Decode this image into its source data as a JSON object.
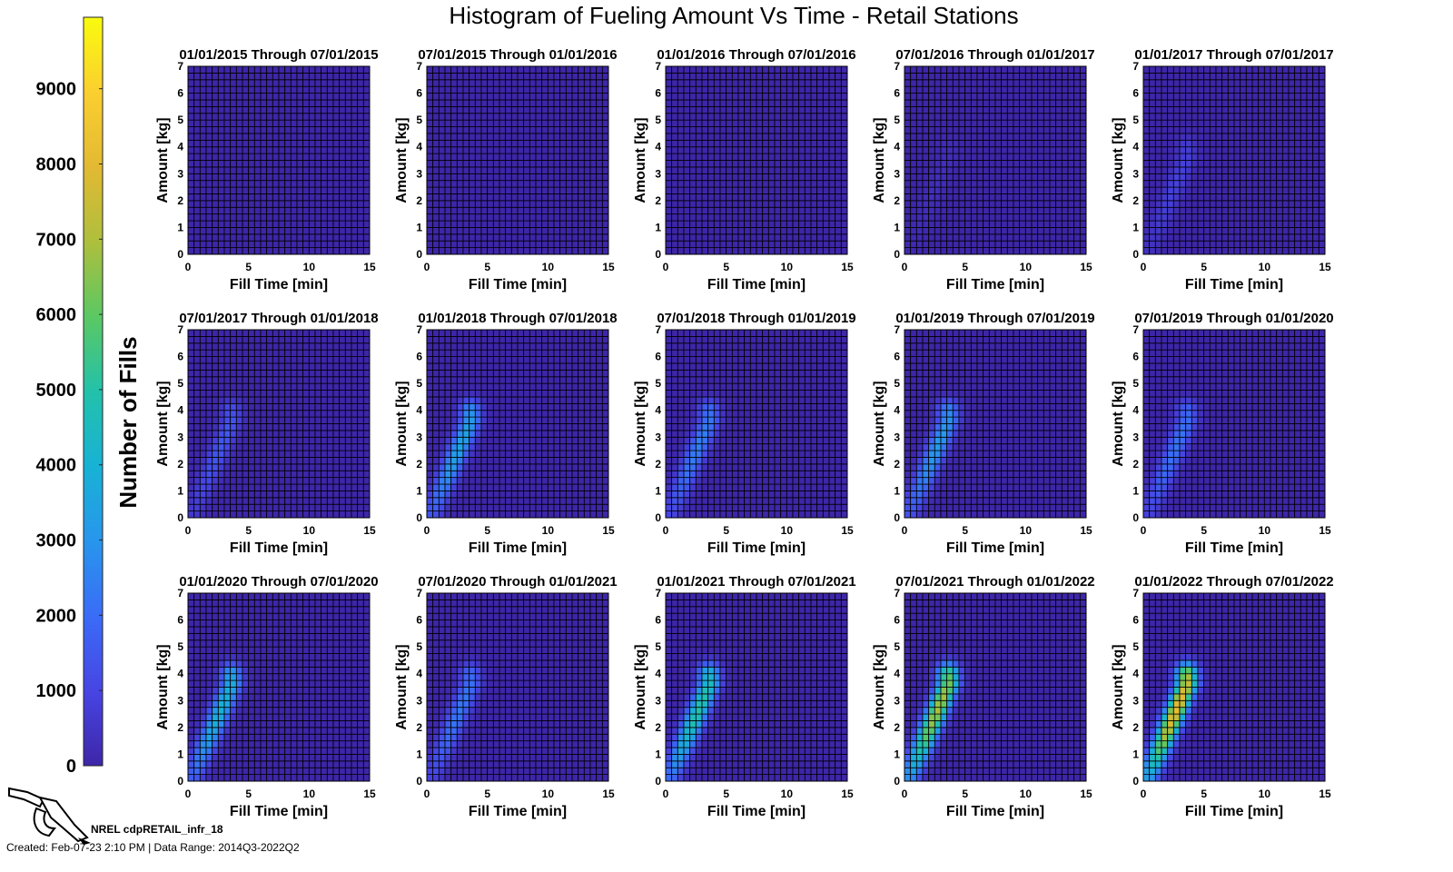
{
  "chart_data": {
    "type": "heatmap",
    "title": "Histogram of Fueling Amount Vs Time - Retail Stations",
    "colorbar": {
      "label": "Number of Fills",
      "ticks": [
        0,
        1000,
        2000,
        3000,
        4000,
        5000,
        6000,
        7000,
        8000,
        9000
      ],
      "range": [
        0,
        9950
      ],
      "colormap": [
        "#3e26a8",
        "#4745e4",
        "#3a6cf7",
        "#2896ec",
        "#18b2d5",
        "#23c1aa",
        "#5bc863",
        "#aebf3d",
        "#e3b933",
        "#fbcf2f",
        "#f9fb0e"
      ]
    },
    "xlabel": "Fill Time [min]",
    "ylabel": "Amount [kg]",
    "xlim": [
      0,
      15
    ],
    "ylim": [
      0,
      7
    ],
    "xticks": [
      0,
      5,
      10,
      15
    ],
    "yticks": [
      0,
      1,
      2,
      3,
      4,
      5,
      6,
      7
    ],
    "bins": {
      "x_bin_width_min": 0.5,
      "y_bin_width_kg": 0.25
    },
    "panels": [
      {
        "title": "01/01/2015 Through 07/01/2015",
        "peak_fills": 0
      },
      {
        "title": "07/01/2015 Through 01/01/2016",
        "peak_fills": 0
      },
      {
        "title": "01/01/2016 Through 07/01/2016",
        "peak_fills": 0
      },
      {
        "title": "07/01/2016 Through 01/01/2017",
        "peak_fills": 300
      },
      {
        "title": "01/01/2017 Through 07/01/2017",
        "peak_fills": 900
      },
      {
        "title": "07/01/2017 Through 01/01/2018",
        "peak_fills": 1500
      },
      {
        "title": "01/01/2018 Through 07/01/2018",
        "peak_fills": 3500
      },
      {
        "title": "07/01/2018 Through 01/01/2019",
        "peak_fills": 2500
      },
      {
        "title": "01/01/2019 Through 07/01/2019",
        "peak_fills": 3200
      },
      {
        "title": "07/01/2019 Through 01/01/2020",
        "peak_fills": 2200
      },
      {
        "title": "01/01/2020 Through 07/01/2020",
        "peak_fills": 4000
      },
      {
        "title": "07/01/2020 Through 01/01/2021",
        "peak_fills": 2300
      },
      {
        "title": "01/01/2021 Through 07/01/2021",
        "peak_fills": 5000
      },
      {
        "title": "07/01/2021 Through 01/01/2022",
        "peak_fills": 7000
      },
      {
        "title": "01/01/2022 Through 07/01/2022",
        "peak_fills": 8200
      }
    ]
  },
  "footer": {
    "name": "NREL cdpRETAIL_infr_18",
    "meta": "Created: Feb-07-23  2:10 PM | Data Range: 2014Q3-2022Q2",
    "icon": "fuel-nozzle-icon"
  }
}
